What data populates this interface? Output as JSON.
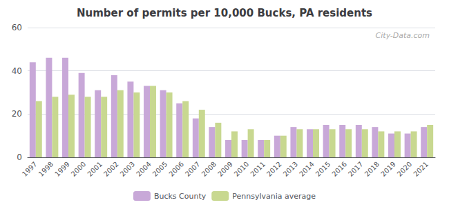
{
  "chart_data": {
    "type": "bar",
    "title": "Number of permits per 10,000 Bucks, PA residents",
    "categories": [
      "1997",
      "1998",
      "1999",
      "2000",
      "2001",
      "2002",
      "2003",
      "2004",
      "2005",
      "2006",
      "2007",
      "2008",
      "2009",
      "2010",
      "2011",
      "2012",
      "2013",
      "2014",
      "2015",
      "2016",
      "2017",
      "2018",
      "2019",
      "2020",
      "2021"
    ],
    "series": [
      {
        "name": "Bucks County",
        "color": "#c8a8d8",
        "values": [
          44,
          46,
          46,
          39,
          31,
          38,
          35,
          33,
          31,
          25,
          18,
          14,
          8,
          8,
          8,
          10,
          14,
          13,
          15,
          15,
          15,
          14,
          11,
          11,
          14
        ]
      },
      {
        "name": "Pennsylvania average",
        "color": "#c8d890",
        "values": [
          26,
          28,
          29,
          28,
          28,
          31,
          30,
          33,
          30,
          26,
          22,
          16,
          12,
          13,
          8,
          10,
          13,
          13,
          13,
          13,
          13,
          12,
          12,
          12,
          15
        ]
      }
    ],
    "ylim": [
      0,
      60
    ],
    "yticks": [
      0,
      20,
      40,
      60
    ],
    "grid": true,
    "legend": "bottom",
    "annotations": [
      "City-Data.com"
    ]
  }
}
